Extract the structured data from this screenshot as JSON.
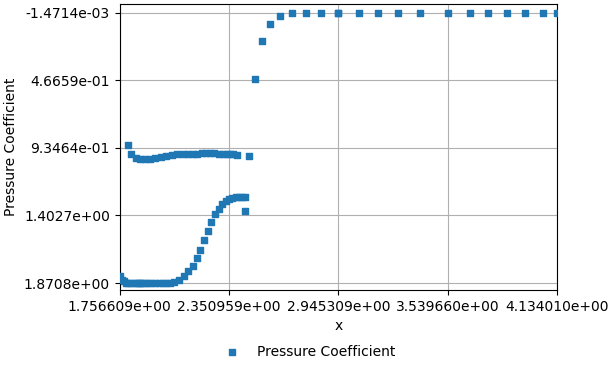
{
  "chart_data": {
    "type": "scatter",
    "xlabel": "x",
    "ylabel": "Pressure Coefficient",
    "series": [
      {
        "name": "Pressure Coefficient",
        "marker": "square",
        "x": [
          1.757,
          1.768,
          1.778,
          1.79,
          1.805,
          1.82,
          1.835,
          1.85,
          1.86,
          1.87,
          1.88,
          1.895,
          1.91,
          1.93,
          1.95,
          1.97,
          1.99,
          2.01,
          2.03,
          2.055,
          2.08,
          2.105,
          2.13,
          2.155,
          2.175,
          2.195,
          2.215,
          2.235,
          2.255,
          2.275,
          2.295,
          2.315,
          2.335,
          2.352,
          2.37,
          2.388,
          2.405,
          2.422,
          2.438,
          1.8,
          1.82,
          1.845,
          1.868,
          1.895,
          1.922,
          1.95,
          1.98,
          2.01,
          2.04,
          2.07,
          2.1,
          2.13,
          2.155,
          2.18,
          2.205,
          2.228,
          2.25,
          2.272,
          2.295,
          2.318,
          2.34,
          2.358,
          2.375,
          2.392,
          2.44,
          2.46,
          2.49,
          2.53,
          2.575,
          2.63,
          2.695,
          2.77,
          2.85,
          2.945,
          2.945,
          3.06,
          3.16,
          3.27,
          3.39,
          3.54,
          3.66,
          3.76,
          3.86,
          3.96,
          4.06,
          4.134
        ],
        "values": [
          1.82,
          1.852,
          1.86,
          1.868,
          1.869,
          1.869,
          1.869,
          1.869,
          1.869,
          1.869,
          1.869,
          1.869,
          1.869,
          1.868,
          1.868,
          1.868,
          1.868,
          1.868,
          1.87,
          1.866,
          1.852,
          1.82,
          1.79,
          1.75,
          1.7,
          1.64,
          1.575,
          1.51,
          1.45,
          1.395,
          1.355,
          1.325,
          1.305,
          1.292,
          1.283,
          1.278,
          1.276,
          1.276,
          1.278,
          0.918,
          0.978,
          1.005,
          1.012,
          1.015,
          1.015,
          1.008,
          0.997,
          0.988,
          0.982,
          0.978,
          0.977,
          0.977,
          0.978,
          0.975,
          0.972,
          0.97,
          0.97,
          0.972,
          0.975,
          0.978,
          0.98,
          0.978,
          0.975,
          0.983,
          1.37,
          0.99,
          0.458,
          0.195,
          0.078,
          0.022,
          0.004,
          -0.0004,
          -0.0011,
          -0.0013,
          -0.0013,
          -0.0013,
          -0.0013,
          -0.0013,
          -0.0013,
          -0.0013,
          -0.0013,
          -0.0013,
          -0.0013,
          -0.0013,
          -0.0013,
          -0.0013
        ]
      }
    ],
    "xlim": [
      1.756609,
      4.13401
    ],
    "ylim": [
      1.92,
      -0.06
    ],
    "xticks": [
      {
        "value": 1.756609,
        "label": "1.756609e+00"
      },
      {
        "value": 2.350959,
        "label": "2.350959e+00"
      },
      {
        "value": 2.945309,
        "label": "2.945309e+00"
      },
      {
        "value": 3.53966,
        "label": "3.539660e+00"
      },
      {
        "value": 4.13401,
        "label": "4.134010e+00"
      }
    ],
    "yticks": [
      {
        "value": -0.0014714,
        "label": "-1.4714e-03"
      },
      {
        "value": 0.46659,
        "label": "4.6659e-01"
      },
      {
        "value": 0.93464,
        "label": "9.3464e-01"
      },
      {
        "value": 1.4027,
        "label": "1.4027e+00"
      },
      {
        "value": 1.8708,
        "label": "1.8708e+00"
      }
    ],
    "grid": true,
    "legend": "lower center"
  }
}
